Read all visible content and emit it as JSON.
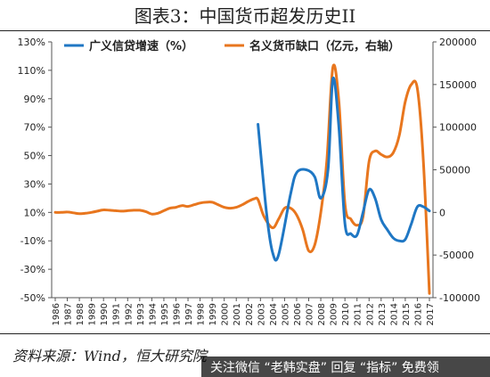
{
  "title": "图表3：中国货币超发历史II",
  "source": "资料来源：Wind，恒大研究院",
  "watermark": "关注微信 “老韩实盘” 回复 “指标” 免费领",
  "chart_data": {
    "type": "line",
    "legend_position": "top",
    "x": [
      1986,
      1987,
      1988,
      1989,
      1990,
      1991,
      1992,
      1993,
      1994,
      1995,
      1996,
      1997,
      1998,
      1999,
      2000,
      2001,
      2002,
      2003,
      2004,
      2005,
      2006,
      2007,
      2008,
      2009,
      2010,
      2011,
      2012,
      2013,
      2014,
      2015,
      2016,
      2017
    ],
    "x_tick_labels": [
      "1986",
      "1987",
      "1988",
      "1989",
      "1990",
      "1991",
      "1992",
      "1993",
      "1994",
      "1995",
      "1996",
      "1997",
      "1998",
      "1999",
      "2000",
      "2001",
      "2002",
      "2003",
      "2004",
      "2005",
      "2006",
      "2007",
      "2008",
      "2009",
      "2010",
      "2011",
      "2012",
      "2013",
      "2014",
      "2015",
      "2016",
      "2017"
    ],
    "y_left": {
      "ylim": [
        -50,
        130
      ],
      "ticks": [
        -50,
        -30,
        -10,
        10,
        30,
        50,
        70,
        90,
        110,
        130
      ],
      "tick_labels": [
        "-50%",
        "-30%",
        "-10%",
        "10%",
        "30%",
        "50%",
        "70%",
        "90%",
        "110%",
        "130%"
      ]
    },
    "y_right": {
      "ylim": [
        -100000,
        200000
      ],
      "ticks": [
        -100000,
        -50000,
        0,
        50000,
        100000,
        150000,
        200000
      ],
      "tick_labels": [
        "-100000",
        "-50000",
        "0",
        "50000",
        "100000",
        "150000",
        "200000"
      ]
    },
    "grid": false,
    "series": [
      {
        "name": "广义信贷增速（%）",
        "axis": "left",
        "color": "#1f77c4",
        "x": [
          2002.8,
          2003.5,
          2004.0,
          2004.5,
          2005.5,
          2006.0,
          2006.8,
          2007.5,
          2008.0,
          2008.6,
          2009.0,
          2009.5,
          2010.0,
          2010.5,
          2011.0,
          2011.5,
          2012.0,
          2012.5,
          2013.0,
          2013.5,
          2014.0,
          2014.5,
          2015.0,
          2015.5,
          2016.0,
          2016.5,
          2017.0
        ],
        "y": [
          72,
          10,
          -18,
          -20,
          23,
          38,
          40,
          35,
          20,
          40,
          104,
          70,
          2,
          -5,
          -6,
          10,
          26,
          20,
          5,
          -2,
          -8,
          -10,
          -9,
          2,
          14,
          14,
          11
        ]
      },
      {
        "name": "名义货币缺口（亿元，右轴）",
        "axis": "right",
        "color": "#e8761e",
        "x": [
          1986,
          1986.5,
          1987,
          1987.5,
          1988,
          1988.5,
          1989,
          1989.5,
          1990,
          1990.5,
          1991,
          1991.5,
          1992,
          1992.5,
          1993,
          1993.5,
          1994,
          1994.5,
          1995,
          1995.5,
          1996,
          1996.5,
          1997,
          1997.5,
          1998,
          1998.5,
          1999,
          1999.5,
          2000,
          2000.5,
          2001,
          2001.5,
          2002,
          2002.5,
          2002.8,
          2003.3,
          2004.0,
          2004.5,
          2005.0,
          2005.5,
          2006.0,
          2006.5,
          2007.0,
          2007.5,
          2008.0,
          2008.5,
          2009.0,
          2009.5,
          2010.0,
          2010.5,
          2011.0,
          2011.5,
          2012.0,
          2012.5,
          2013.0,
          2013.5,
          2014.0,
          2014.5,
          2015.0,
          2015.5,
          2016.0,
          2016.5,
          2017.0
        ],
        "y": [
          0,
          0,
          500,
          -500,
          -1500,
          -1000,
          0,
          1500,
          3000,
          2500,
          2000,
          1500,
          2000,
          2500,
          2500,
          1000,
          -2000,
          -1000,
          2000,
          5000,
          6000,
          8000,
          7000,
          9000,
          11000,
          12000,
          12000,
          9000,
          6000,
          5000,
          6000,
          9000,
          13000,
          16000,
          15000,
          -5000,
          -18000,
          -8000,
          5000,
          5000,
          -3000,
          -20000,
          -45000,
          -38000,
          0,
          60000,
          170000,
          130000,
          10000,
          -8000,
          -15000,
          -5000,
          60000,
          72000,
          68000,
          65000,
          70000,
          90000,
          130000,
          150000,
          145000,
          60000,
          -95000
        ]
      }
    ]
  }
}
